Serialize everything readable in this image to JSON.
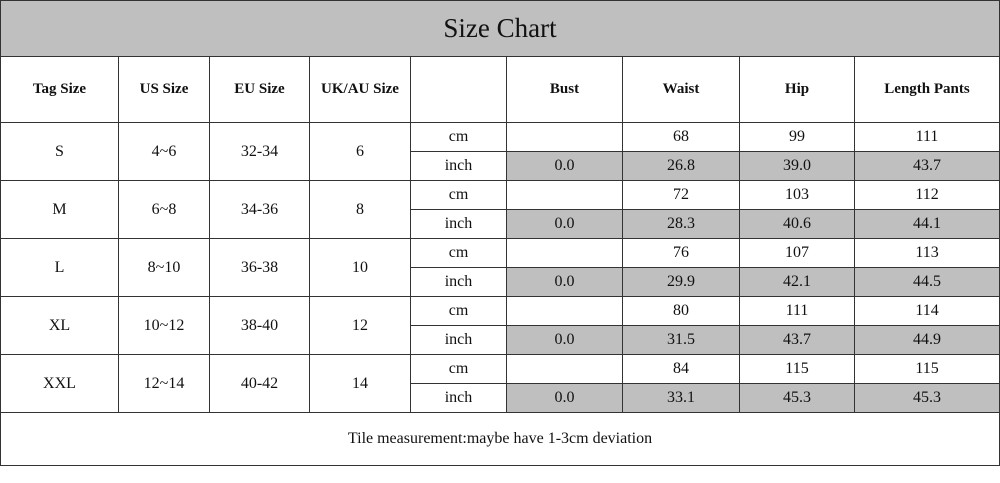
{
  "title": "Size Chart",
  "headers": [
    "Tag Size",
    "US Size",
    "EU Size",
    "UK/AU Size",
    "",
    "Bust",
    "Waist",
    "Hip",
    "Length Pants"
  ],
  "rows": [
    {
      "tag": "S",
      "us": "4~6",
      "eu": "32-34",
      "uk": "6",
      "cm": {
        "unit": "cm",
        "bust": "",
        "waist": "68",
        "hip": "99",
        "length": "111"
      },
      "inch": {
        "unit": "inch",
        "bust": "0.0",
        "waist": "26.8",
        "hip": "39.0",
        "length": "43.7"
      }
    },
    {
      "tag": "M",
      "us": "6~8",
      "eu": "34-36",
      "uk": "8",
      "cm": {
        "unit": "cm",
        "bust": "",
        "waist": "72",
        "hip": "103",
        "length": "112"
      },
      "inch": {
        "unit": "inch",
        "bust": "0.0",
        "waist": "28.3",
        "hip": "40.6",
        "length": "44.1"
      }
    },
    {
      "tag": "L",
      "us": "8~10",
      "eu": "36-38",
      "uk": "10",
      "cm": {
        "unit": "cm",
        "bust": "",
        "waist": "76",
        "hip": "107",
        "length": "113"
      },
      "inch": {
        "unit": "inch",
        "bust": "0.0",
        "waist": "29.9",
        "hip": "42.1",
        "length": "44.5"
      }
    },
    {
      "tag": "XL",
      "us": "10~12",
      "eu": "38-40",
      "uk": "12",
      "cm": {
        "unit": "cm",
        "bust": "",
        "waist": "80",
        "hip": "111",
        "length": "114"
      },
      "inch": {
        "unit": "inch",
        "bust": "0.0",
        "waist": "31.5",
        "hip": "43.7",
        "length": "44.9"
      }
    },
    {
      "tag": "XXL",
      "us": "12~14",
      "eu": "40-42",
      "uk": "14",
      "cm": {
        "unit": "cm",
        "bust": "",
        "waist": "84",
        "hip": "115",
        "length": "115"
      },
      "inch": {
        "unit": "inch",
        "bust": "0.0",
        "waist": "33.1",
        "hip": "45.3",
        "length": "45.3"
      }
    }
  ],
  "footer": "Tile measurement:maybe have 1-3cm deviation"
}
